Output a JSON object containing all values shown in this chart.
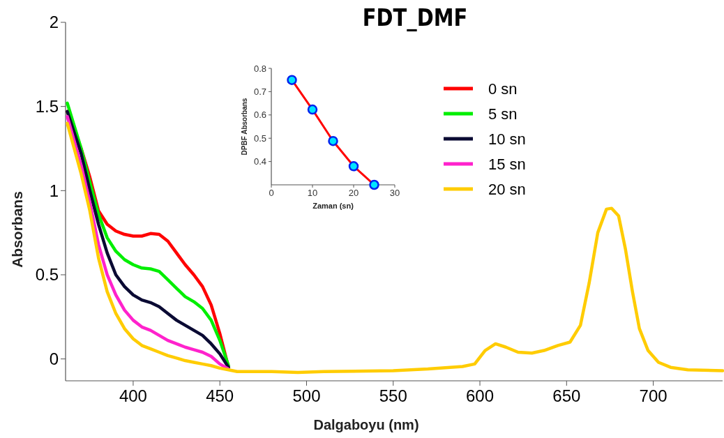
{
  "chart_data": [
    {
      "type": "line",
      "title": "FDT_DMF",
      "xlabel": "Dalgaboyu (nm)",
      "ylabel": "Absorbans",
      "xlim": [
        361,
        740
      ],
      "ylim": [
        -0.13,
        2
      ],
      "xticks": [
        400,
        450,
        500,
        550,
        600,
        650,
        700
      ],
      "yticks": [
        0,
        0.5,
        1,
        1.5,
        2
      ],
      "grid": false,
      "legend": "top right",
      "marker": "none",
      "line_style": "solid",
      "x": [
        362,
        370,
        375,
        380,
        385,
        390,
        395,
        400,
        405,
        410,
        415,
        420,
        425,
        430,
        435,
        440,
        445,
        450,
        455,
        460,
        480,
        495,
        510,
        550,
        570,
        590,
        597,
        603,
        609,
        615,
        622,
        630,
        637,
        645,
        652,
        658,
        663,
        668,
        673,
        676,
        680,
        684,
        688,
        692,
        697,
        703,
        710,
        720,
        740
      ],
      "series": [
        {
          "name": "0 sn",
          "color": "#ff0000",
          "values": [
            1.47,
            1.25,
            1.08,
            0.88,
            0.8,
            0.76,
            0.74,
            0.73,
            0.73,
            0.745,
            0.74,
            0.7,
            0.63,
            0.56,
            0.5,
            0.43,
            0.32,
            0.15,
            -0.05,
            null,
            null,
            null,
            null,
            null,
            null,
            null,
            null,
            null,
            null,
            null,
            null,
            null,
            null,
            null,
            null,
            null,
            null,
            null,
            null,
            null,
            null,
            null,
            null,
            null,
            null,
            null,
            null,
            null,
            null
          ]
        },
        {
          "name": "5 sn",
          "color": "#00ee00",
          "values": [
            1.52,
            1.25,
            1.05,
            0.86,
            0.72,
            0.64,
            0.59,
            0.56,
            0.54,
            0.535,
            0.52,
            0.47,
            0.42,
            0.37,
            0.34,
            0.3,
            0.23,
            0.11,
            -0.04,
            null,
            null,
            null,
            null,
            null,
            null,
            null,
            null,
            null,
            null,
            null,
            null,
            null,
            null,
            null,
            null,
            null,
            null,
            null,
            null,
            null,
            null,
            null,
            null,
            null,
            null,
            null,
            null,
            null,
            null
          ]
        },
        {
          "name": "10 sn",
          "color": "#0a0a33",
          "values": [
            1.47,
            1.22,
            1.0,
            0.8,
            0.63,
            0.5,
            0.43,
            0.38,
            0.35,
            0.335,
            0.31,
            0.27,
            0.23,
            0.2,
            0.17,
            0.14,
            0.09,
            0.03,
            -0.05,
            null,
            null,
            null,
            null,
            null,
            null,
            null,
            null,
            null,
            null,
            null,
            null,
            null,
            null,
            null,
            null,
            null,
            null,
            null,
            null,
            null,
            null,
            null,
            null,
            null,
            null,
            null,
            null,
            null,
            null
          ]
        },
        {
          "name": "15 sn",
          "color": "#ff22cc",
          "values": [
            1.44,
            1.15,
            0.93,
            0.68,
            0.5,
            0.38,
            0.29,
            0.23,
            0.19,
            0.17,
            0.14,
            0.11,
            0.09,
            0.07,
            0.055,
            0.04,
            0.015,
            -0.03,
            -0.06,
            null,
            null,
            null,
            null,
            null,
            null,
            null,
            null,
            null,
            null,
            null,
            null,
            null,
            null,
            null,
            null,
            null,
            null,
            null,
            null,
            null,
            null,
            null,
            null,
            null,
            null,
            null,
            null,
            null,
            null
          ]
        },
        {
          "name": "20 sn",
          "color": "#ffcc00",
          "values": [
            1.4,
            1.1,
            0.88,
            0.6,
            0.4,
            0.27,
            0.18,
            0.12,
            0.08,
            0.06,
            0.04,
            0.02,
            0.005,
            -0.01,
            -0.02,
            -0.03,
            -0.04,
            -0.055,
            -0.065,
            -0.075,
            -0.075,
            -0.08,
            -0.075,
            -0.07,
            -0.06,
            -0.045,
            -0.03,
            0.05,
            0.09,
            0.07,
            0.04,
            0.035,
            0.05,
            0.08,
            0.1,
            0.2,
            0.45,
            0.75,
            0.89,
            0.895,
            0.85,
            0.65,
            0.4,
            0.18,
            0.05,
            -0.02,
            -0.05,
            -0.065,
            -0.07
          ]
        }
      ]
    },
    {
      "type": "line",
      "xlabel": "Zaman (sn)",
      "ylabel": "DPBF Absorbans",
      "xlim": [
        0,
        30
      ],
      "ylim": [
        0.3,
        0.8
      ],
      "xticks": [
        0,
        10,
        20,
        30
      ],
      "yticks": [
        0.4,
        0.5,
        0.6,
        0.7,
        0.8
      ],
      "marker": "circle",
      "line_style": "solid",
      "legend": false,
      "grid": false,
      "x": [
        5,
        10,
        15,
        20,
        25
      ],
      "series": [
        {
          "color": "#ff0000",
          "values": [
            0.75,
            0.623,
            0.488,
            0.38,
            0.3
          ]
        }
      ]
    }
  ]
}
